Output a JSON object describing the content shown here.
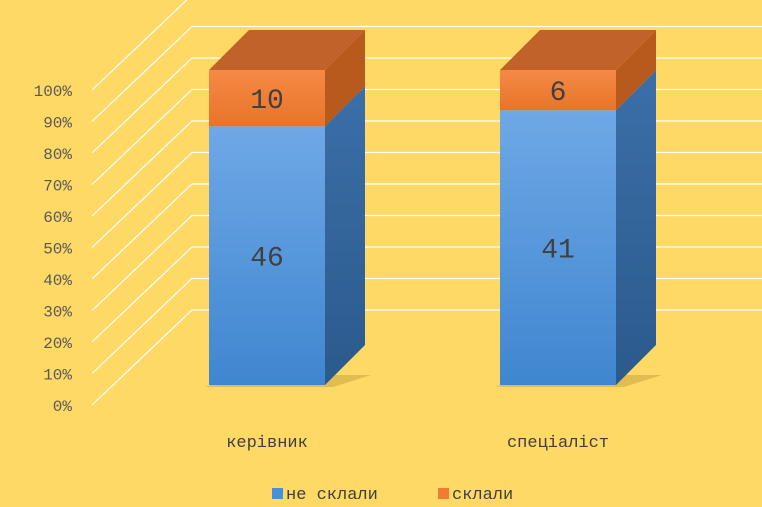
{
  "chart_data": {
    "type": "bar",
    "stacked": "percent",
    "three_d": true,
    "categories": [
      "керівник",
      "спеціаліст"
    ],
    "series": [
      {
        "name": "не склали",
        "values": [
          46,
          41
        ],
        "color": "#4A90D9"
      },
      {
        "name": "склали",
        "values": [
          10,
          6
        ],
        "color": "#ED7D31"
      }
    ],
    "data_labels": [
      [
        "46",
        "41"
      ],
      [
        "10",
        "6"
      ]
    ],
    "y_ticks": [
      "0%",
      "10%",
      "20%",
      "30%",
      "40%",
      "50%",
      "60%",
      "70%",
      "80%",
      "90%",
      "100%"
    ],
    "ylim": [
      0,
      100
    ],
    "grid": true,
    "legend_position": "bottom",
    "background": "#FFD966"
  }
}
